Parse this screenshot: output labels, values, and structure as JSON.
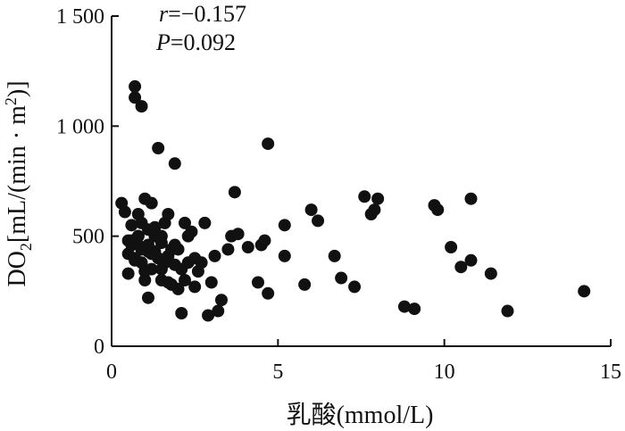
{
  "chart_data": {
    "type": "scatter",
    "title": "",
    "xlabel": "乳酸(mmol/L)",
    "ylabel": "DO2[mL/(min · m2)]",
    "ylabel_parts": {
      "main": "DO",
      "sub": "2",
      "mid": "[mL/(min · m",
      "sup": "2",
      "end": ")]"
    },
    "xlim": [
      0,
      15
    ],
    "ylim": [
      0,
      1500
    ],
    "x_ticks": [
      0,
      5,
      10,
      15
    ],
    "x_tick_labels": [
      "0",
      "5",
      "10",
      "15"
    ],
    "y_ticks": [
      0,
      500,
      1000,
      1500
    ],
    "y_tick_labels": [
      "0",
      "500",
      "1 000",
      "1 500"
    ],
    "annotations": {
      "r_symbol": "r",
      "r_value": "=−0.157",
      "p_symbol": "P",
      "p_value": "=0.092"
    },
    "grid": false,
    "marker_color": "#111111",
    "x": [
      0.7,
      0.7,
      0.9,
      1.4,
      1.9,
      4.7,
      0.3,
      0.4,
      0.5,
      0.5,
      0.6,
      0.6,
      0.7,
      0.8,
      0.8,
      0.9,
      0.9,
      1.0,
      1.0,
      1.1,
      1.1,
      1.2,
      1.3,
      1.4,
      1.4,
      1.5,
      1.5,
      1.6,
      1.6,
      1.7,
      1.7,
      1.8,
      1.8,
      1.9,
      1.9,
      2.0,
      2.0,
      2.1,
      2.2,
      2.2,
      2.3,
      2.3,
      2.4,
      2.5,
      2.5,
      2.6,
      2.7,
      2.8,
      2.9,
      3.0,
      3.1,
      3.2,
      3.3,
      3.5,
      3.6,
      3.7,
      3.8,
      4.1,
      4.4,
      4.5,
      4.6,
      4.7,
      5.2,
      5.2,
      5.8,
      6.0,
      6.2,
      6.7,
      6.9,
      7.3,
      7.6,
      7.8,
      7.9,
      8.0,
      8.8,
      9.1,
      9.7,
      9.8,
      10.2,
      10.5,
      10.8,
      10.8,
      11.4,
      11.9,
      14.2,
      0.6,
      0.7,
      0.8,
      0.9,
      1.0,
      1.1,
      1.2,
      1.3,
      1.5,
      1.7,
      0.5,
      0.9,
      1.1,
      1.2,
      1.5,
      2.1,
      1.3
    ],
    "y": [
      1180,
      1130,
      1090,
      900,
      830,
      920,
      650,
      610,
      420,
      330,
      550,
      480,
      400,
      600,
      500,
      450,
      380,
      670,
      300,
      220,
      460,
      350,
      430,
      500,
      400,
      350,
      500,
      380,
      560,
      600,
      290,
      280,
      440,
      370,
      460,
      440,
      260,
      350,
      560,
      300,
      500,
      380,
      520,
      400,
      270,
      340,
      380,
      560,
      140,
      290,
      410,
      160,
      210,
      440,
      500,
      700,
      510,
      450,
      290,
      460,
      480,
      240,
      550,
      410,
      280,
      620,
      570,
      410,
      310,
      270,
      680,
      600,
      620,
      670,
      180,
      170,
      640,
      620,
      450,
      360,
      390,
      670,
      330,
      160,
      250,
      460,
      390,
      500,
      560,
      340,
      430,
      650,
      500,
      300,
      410,
      480,
      440,
      530,
      420,
      470,
      150,
      540
    ]
  }
}
